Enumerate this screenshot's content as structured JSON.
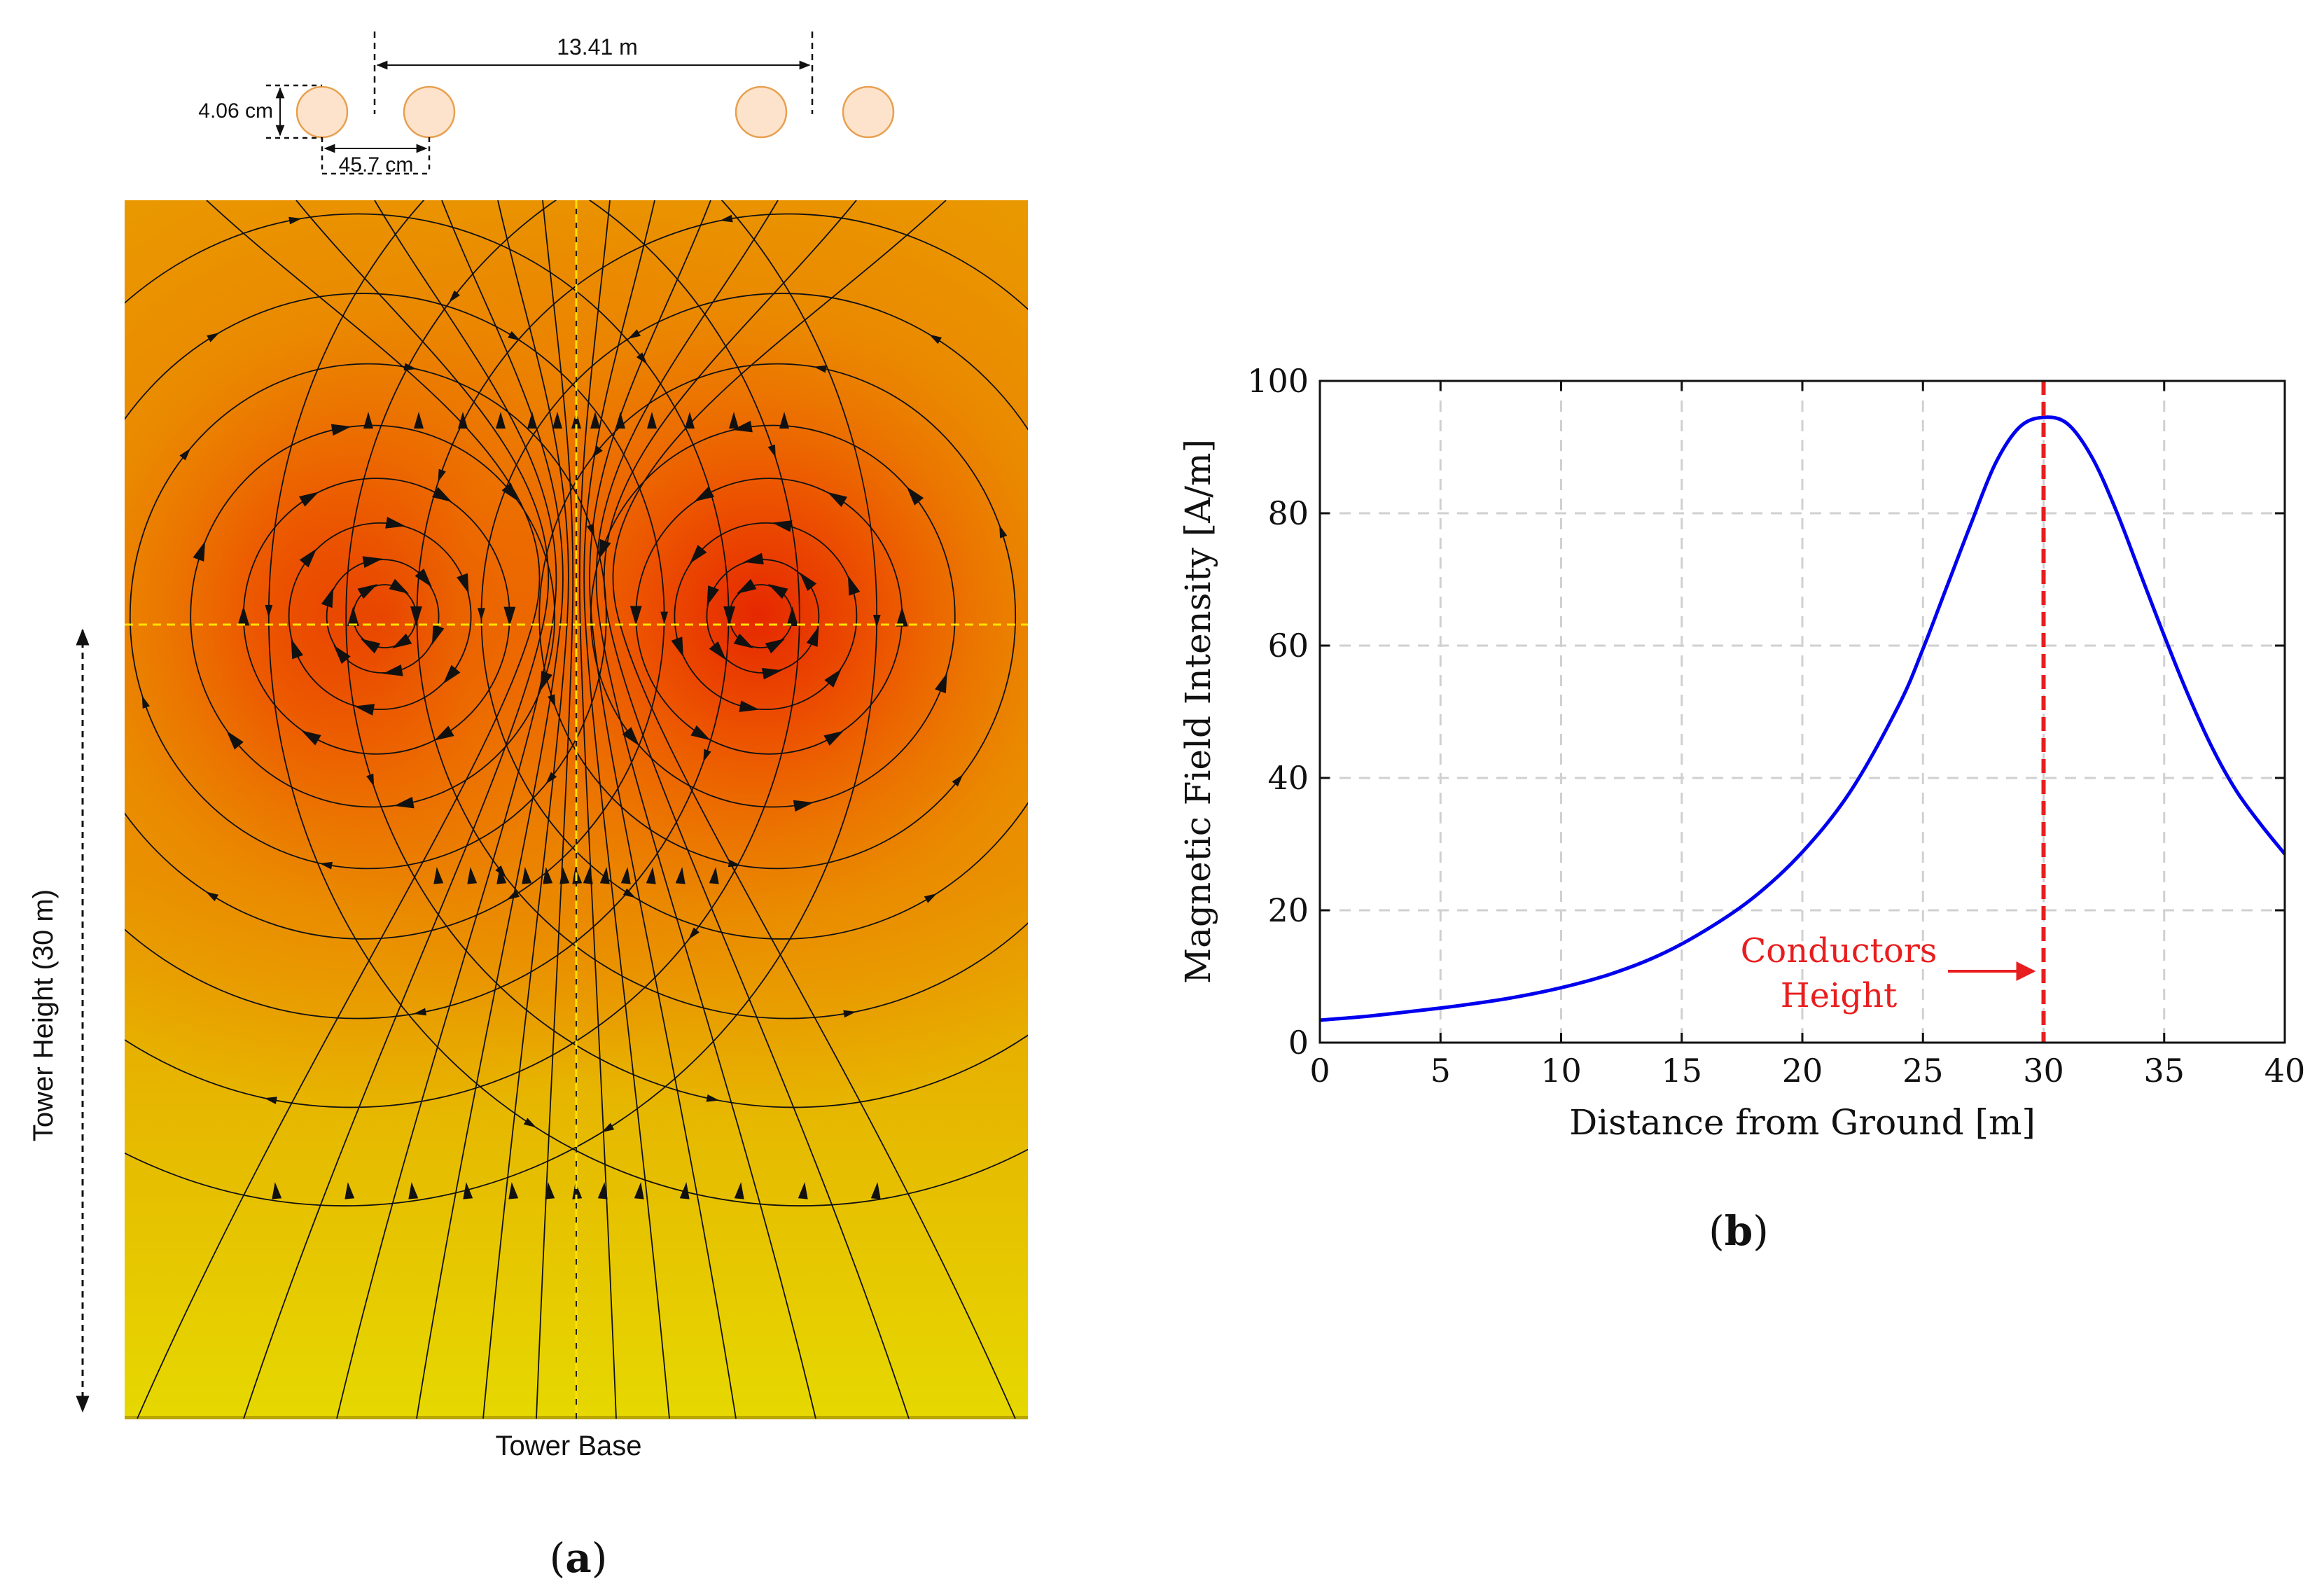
{
  "panel_a": {
    "caption_letter": "a",
    "dim_horizontal_label": "13.41 m",
    "dim_diameter_label": "4.06 cm",
    "dim_spacing_label": "45.7 cm",
    "tower_height_label": "Tower Height (30 m)",
    "tower_base_label": "Tower Base",
    "conductor_count": 4,
    "colors": {
      "conductor_fill": "#fde3cc",
      "conductor_stroke": "#e8a050",
      "field_core": "#e62e00",
      "field_mid": "#ee7000",
      "field_outer": "#e89a00",
      "field_base": "#e5d700",
      "guide_line": "#ffe000",
      "streamline": "#111111"
    }
  },
  "chart_data": {
    "type": "line",
    "title": "",
    "caption_letter": "b",
    "xlabel": "Distance from Ground [m]",
    "ylabel": "Magnetic Field Intensity [A/m]",
    "xlim": [
      0,
      40
    ],
    "ylim": [
      0,
      100
    ],
    "xticks": [
      0,
      5,
      10,
      15,
      20,
      25,
      30,
      35,
      40
    ],
    "yticks": [
      0,
      20,
      40,
      60,
      80,
      100
    ],
    "grid": true,
    "series": [
      {
        "name": "Magnetic field intensity",
        "color": "#0000ee",
        "x": [
          0,
          2,
          4,
          6,
          8,
          10,
          12,
          14,
          16,
          18,
          20,
          22,
          24,
          25,
          26,
          27,
          28,
          29,
          30,
          31,
          32,
          33,
          34,
          35,
          36,
          37,
          38,
          39,
          40
        ],
        "y": [
          3.4,
          4.0,
          4.8,
          5.7,
          6.8,
          8.3,
          10.3,
          13.1,
          17.0,
          22.0,
          28.8,
          38.0,
          51.0,
          59.5,
          69.0,
          78.5,
          87.5,
          93.0,
          94.5,
          93.5,
          88.5,
          80.5,
          71.0,
          61.5,
          52.5,
          44.5,
          38.0,
          33.0,
          28.5
        ]
      }
    ],
    "marker_line": {
      "x": 30,
      "color": "#e81e1e"
    },
    "annotation": {
      "line1": "Conductors",
      "line2": "Height",
      "color": "#e81e1e"
    }
  }
}
